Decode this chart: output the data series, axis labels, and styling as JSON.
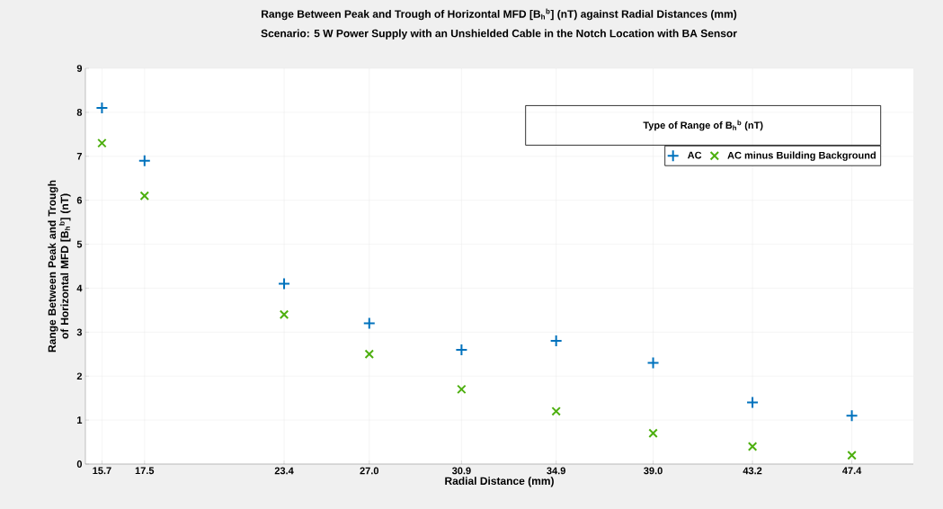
{
  "chart_data": {
    "type": "scatter",
    "title": "Range Between Peak and Trough of Horizontal MFD [B$_{h}$$^{b}$] (nT) against Radial Distances (mm)",
    "subtitle": "Scenario: 5 W Power Supply with an Unshielded Cable in the Notch Location with BA Sensor",
    "xlabel": "Radial Distance (mm)",
    "ylabel": "Range Between Peak and Trough of Horizontal MFD [B$_{h}$$^{b}$] (nT)",
    "legend_title": "Type of Range of B$_{h}$$^{b}$ (nT)",
    "x": [
      15.7,
      17.5,
      23.4,
      27.0,
      30.9,
      34.9,
      39.0,
      43.2,
      47.4
    ],
    "series": [
      {
        "name": "AC",
        "color": "#0072bd",
        "marker": "plus",
        "values": [
          8.1,
          6.9,
          4.1,
          3.2,
          2.6,
          2.8,
          2.3,
          1.4,
          1.1
        ]
      },
      {
        "name": "AC minus Building Background",
        "color": "#4daf0f",
        "marker": "cross",
        "values": [
          7.3,
          6.1,
          3.4,
          2.5,
          1.7,
          1.2,
          0.7,
          0.4,
          0.2
        ]
      }
    ],
    "xlim": [
      15,
      50
    ],
    "ylim": [
      0,
      9
    ],
    "xticks": [
      15.7,
      17.5,
      23.4,
      {
        "value": 27,
        "label": "27.0"
      },
      30.9,
      34.9,
      {
        "value": 39,
        "label": "39.0"
      },
      43.2,
      47.4
    ],
    "yticks": [
      0,
      1,
      2,
      3,
      4,
      5,
      6,
      7,
      8,
      9
    ],
    "grid": true,
    "legend": "top right"
  }
}
